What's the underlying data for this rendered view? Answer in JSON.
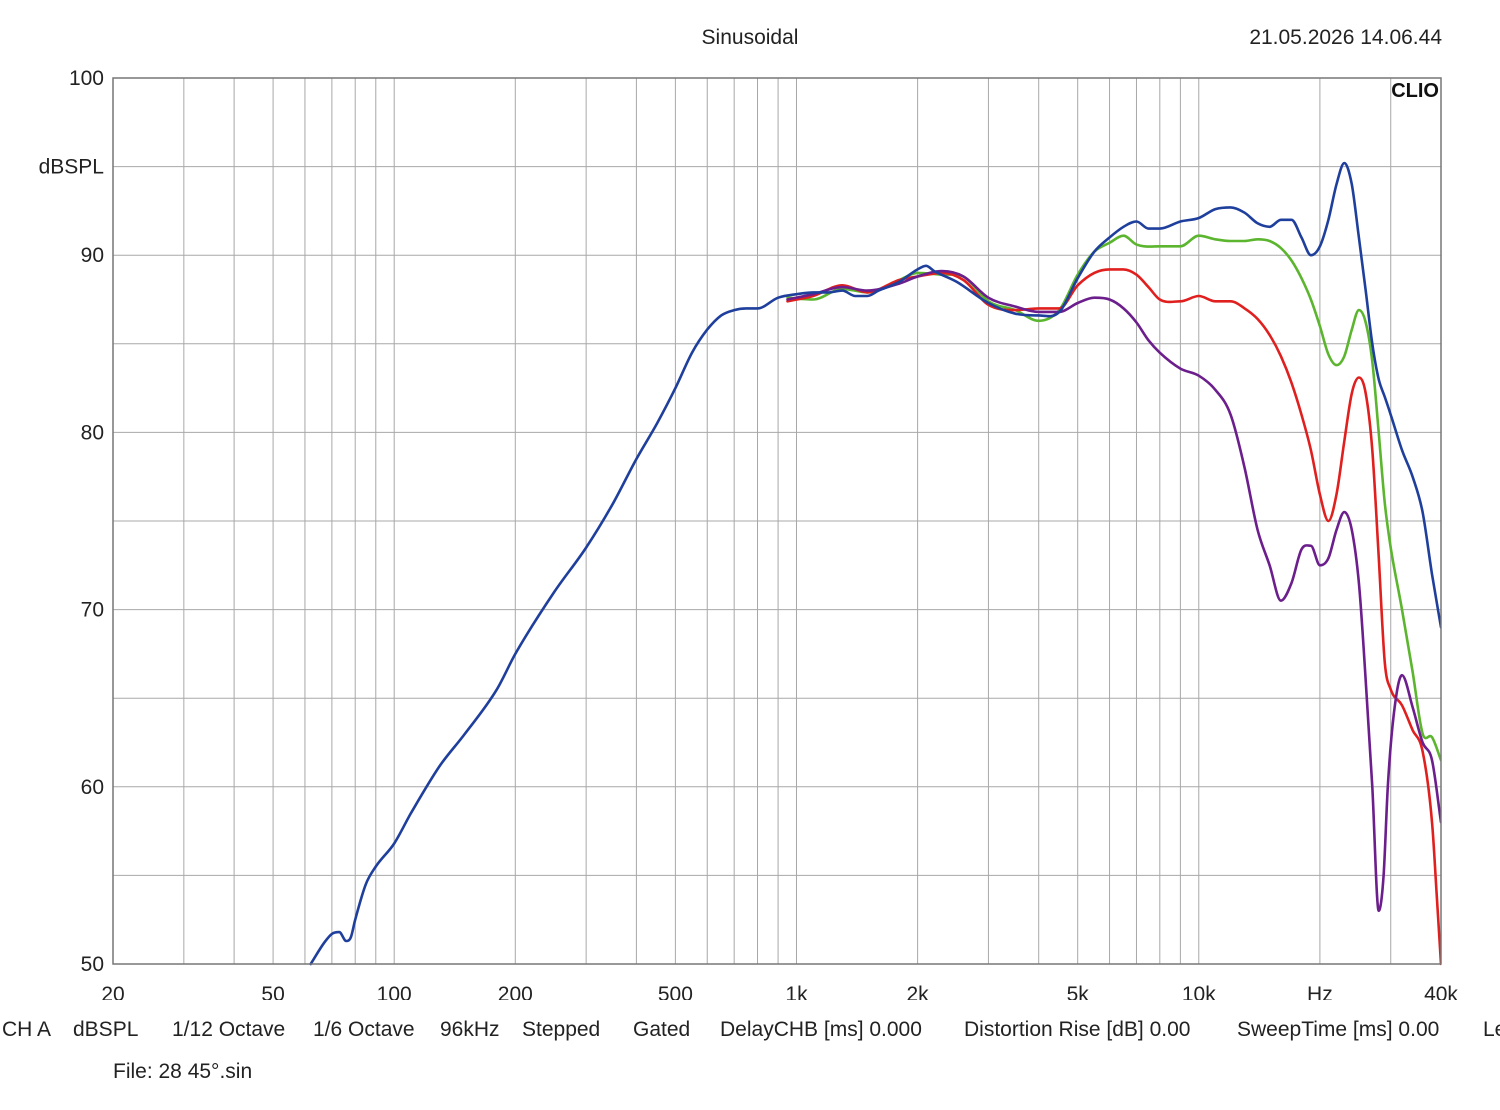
{
  "header": {
    "title": "Sinusoidal",
    "datestamp": "21.05.2026 14.06.44",
    "brand": "CLIO"
  },
  "footer": {
    "status_items": [
      "CH A",
      "dBSPL",
      "1/12 Octave",
      "1/6 Octave",
      "96kHz",
      "Stepped",
      "Gated",
      "DelayCHB [ms] 0.000",
      "Distortion Rise [dB] 0.00",
      "SweepTime [ms] 0.00",
      "Le"
    ],
    "file_label": "File: 28 45°.sin"
  },
  "colors": {
    "grid": "#a8a8a8",
    "frame": "#777777",
    "blue": "#1f3f9c",
    "green": "#5cb52e",
    "red": "#e0201f",
    "purple": "#6b1e8c"
  },
  "chart_data": {
    "type": "line",
    "x_scale": "log",
    "xlim": [
      20,
      40000
    ],
    "ylim": [
      50,
      100
    ],
    "ylabel": "dBSPL",
    "grid": true,
    "x_tick_labels": [
      {
        "value": 20,
        "label": "20"
      },
      {
        "value": 50,
        "label": "50"
      },
      {
        "value": 100,
        "label": "100"
      },
      {
        "value": 200,
        "label": "200"
      },
      {
        "value": 500,
        "label": "500"
      },
      {
        "value": 1000,
        "label": "1k"
      },
      {
        "value": 2000,
        "label": "2k"
      },
      {
        "value": 5000,
        "label": "5k"
      },
      {
        "value": 10000,
        "label": "10k"
      },
      {
        "value": 20000,
        "label": "Hz"
      },
      {
        "value": 40000,
        "label": "40k"
      }
    ],
    "y_tick_labels": [
      {
        "value": 100,
        "label": "100"
      },
      {
        "value": 90,
        "label": "90"
      },
      {
        "value": 80,
        "label": "80"
      },
      {
        "value": 70,
        "label": "70"
      },
      {
        "value": 60,
        "label": "60"
      },
      {
        "value": 50,
        "label": "50"
      }
    ],
    "series": [
      {
        "color": "#5cb52e",
        "x": [
          950,
          1100,
          1300,
          1500,
          1800,
          2000,
          2300,
          2600,
          3000,
          3500,
          4000,
          4500,
          5000,
          5500,
          6000,
          6500,
          7000,
          8000,
          9000,
          10000,
          11000,
          12000,
          13000,
          14000,
          15000,
          16000,
          17000,
          18000,
          19000,
          20000,
          21000,
          22000,
          23000,
          24000,
          25000,
          26000,
          27000,
          28000,
          29000,
          30000,
          32000,
          34000,
          36000,
          38000,
          40000
        ],
        "y": [
          87.6,
          87.5,
          88.1,
          87.9,
          88.6,
          89.0,
          88.9,
          88.8,
          87.4,
          86.9,
          86.3,
          86.9,
          88.9,
          90.2,
          90.7,
          91.1,
          90.6,
          90.5,
          90.5,
          91.1,
          90.9,
          90.8,
          90.8,
          90.9,
          90.8,
          90.4,
          89.7,
          88.7,
          87.5,
          86.0,
          84.4,
          83.8,
          84.3,
          85.8,
          86.9,
          86.2,
          84.0,
          80.0,
          76.0,
          73.5,
          70.0,
          66.5,
          63.0,
          62.8,
          61.5
        ]
      },
      {
        "color": "#e0201f",
        "x": [
          950,
          1100,
          1300,
          1500,
          1800,
          2000,
          2300,
          2600,
          3000,
          3500,
          4000,
          4500,
          5000,
          5500,
          6000,
          6500,
          7000,
          7500,
          8000,
          9000,
          10000,
          11000,
          12000,
          13000,
          14000,
          15000,
          16000,
          17000,
          18000,
          19000,
          20000,
          21000,
          22000,
          23000,
          24000,
          25000,
          26000,
          27000,
          28000,
          29000,
          30000,
          32000,
          34000,
          36000,
          38000,
          39000,
          40000
        ],
        "y": [
          87.4,
          87.7,
          88.3,
          87.9,
          88.6,
          88.8,
          89.0,
          88.6,
          87.2,
          86.9,
          87.0,
          87.0,
          88.3,
          89.0,
          89.2,
          89.2,
          88.9,
          88.2,
          87.5,
          87.4,
          87.7,
          87.4,
          87.4,
          87.0,
          86.4,
          85.5,
          84.3,
          82.8,
          81.0,
          79.0,
          76.5,
          75.0,
          76.5,
          79.5,
          82.2,
          83.1,
          82.2,
          79.0,
          73.0,
          67.0,
          65.5,
          64.6,
          63.2,
          62.0,
          58.0,
          54.0,
          50.0
        ]
      },
      {
        "color": "#6b1e8c",
        "x": [
          950,
          1100,
          1300,
          1500,
          1800,
          2000,
          2300,
          2600,
          3000,
          3500,
          4000,
          4500,
          5000,
          5500,
          6000,
          6500,
          7000,
          7500,
          8000,
          9000,
          10000,
          11000,
          12000,
          13000,
          14000,
          15000,
          16000,
          17000,
          18000,
          19000,
          20000,
          21000,
          22000,
          23000,
          24000,
          25000,
          26000,
          27000,
          28000,
          28800,
          29500,
          30500,
          32000,
          34000,
          36000,
          38000,
          40000
        ],
        "y": [
          87.5,
          87.8,
          88.2,
          88.0,
          88.4,
          88.8,
          89.1,
          88.8,
          87.6,
          87.1,
          86.8,
          86.8,
          87.3,
          87.6,
          87.5,
          87.0,
          86.2,
          85.2,
          84.5,
          83.6,
          83.2,
          82.4,
          81.0,
          78.0,
          74.5,
          72.5,
          70.5,
          71.5,
          73.4,
          73.6,
          72.5,
          72.9,
          74.5,
          75.5,
          74.5,
          71.5,
          66.0,
          60.0,
          53.0,
          55.0,
          60.0,
          64.0,
          66.3,
          64.5,
          62.5,
          61.5,
          58.0
        ]
      },
      {
        "color": "#1f3f9c",
        "x": [
          62,
          67,
          70,
          73,
          76,
          78,
          80,
          85,
          90,
          100,
          110,
          130,
          150,
          180,
          200,
          250,
          300,
          350,
          400,
          450,
          500,
          550,
          600,
          650,
          700,
          750,
          800,
          900,
          1000,
          1100,
          1200,
          1300,
          1400,
          1500,
          1600,
          1800,
          2000,
          2100,
          2200,
          2500,
          3000,
          3500,
          4000,
          4500,
          5000,
          5500,
          6000,
          6500,
          7000,
          7500,
          8000,
          9000,
          10000,
          11000,
          12000,
          13000,
          14000,
          15000,
          16000,
          17000,
          18000,
          19000,
          20000,
          21000,
          22000,
          23000,
          24000,
          25000,
          26000,
          27000,
          28000,
          29000,
          30000,
          32000,
          34000,
          36000,
          38000,
          40000
        ],
        "y": [
          50.0,
          51.2,
          51.7,
          51.8,
          51.3,
          51.5,
          52.5,
          54.5,
          55.5,
          56.8,
          58.5,
          61.2,
          63.0,
          65.5,
          67.5,
          71.0,
          73.5,
          76.0,
          78.5,
          80.5,
          82.5,
          84.5,
          85.8,
          86.6,
          86.9,
          87.0,
          87.0,
          87.6,
          87.8,
          87.9,
          87.9,
          88.0,
          87.7,
          87.7,
          88.0,
          88.5,
          89.2,
          89.4,
          89.1,
          88.5,
          87.3,
          86.7,
          86.6,
          86.8,
          88.7,
          90.2,
          91.0,
          91.6,
          91.9,
          91.5,
          91.5,
          91.9,
          92.1,
          92.6,
          92.7,
          92.4,
          91.8,
          91.6,
          92.0,
          92.0,
          91.0,
          90.0,
          90.5,
          92.0,
          94.0,
          95.2,
          94.0,
          91.0,
          88.0,
          85.0,
          83.0,
          82.0,
          81.0,
          79.0,
          77.5,
          75.5,
          72.0,
          69.0
        ]
      }
    ]
  }
}
